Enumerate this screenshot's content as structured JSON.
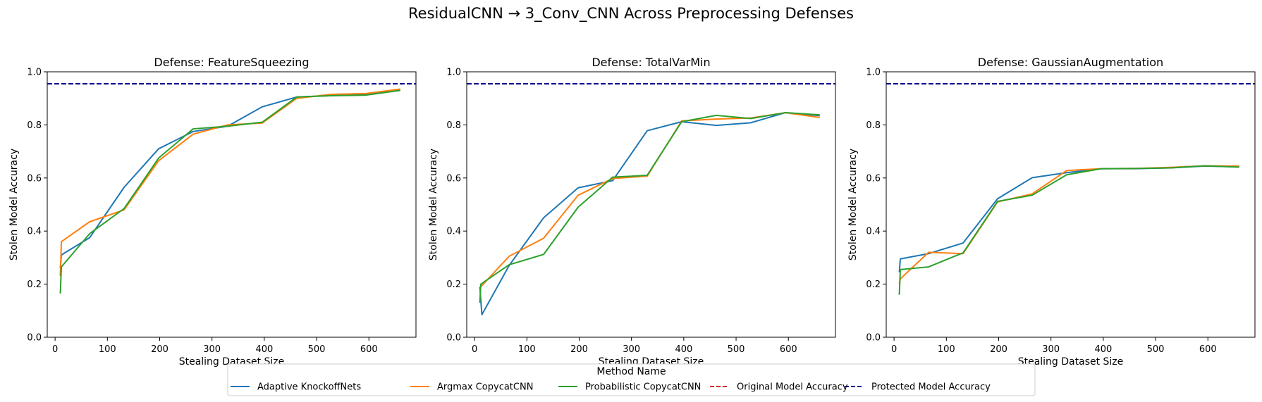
{
  "figure": {
    "suptitle": "ResidualCNN → 3_Conv_CNN Across Preprocessing Defenses"
  },
  "colors": {
    "Adaptive KnockoffNets": "#1f77b4",
    "Argmax CopycatCNN": "#ff7f0e",
    "Probabilistic CopycatCNN": "#2ca02c",
    "Original Model Accuracy": "#d62728",
    "Protected Model Accuracy": "#00008b"
  },
  "legend": {
    "title": "Method Name",
    "placement": "bottom-center",
    "entries": [
      {
        "label": "Adaptive KnockoffNets",
        "style": "solid"
      },
      {
        "label": "Argmax CopycatCNN",
        "style": "solid"
      },
      {
        "label": "Probabilistic CopycatCNN",
        "style": "solid"
      },
      {
        "label": "Original Model Accuracy",
        "style": "dashed"
      },
      {
        "label": "Protected Model Accuracy",
        "style": "dashed"
      }
    ]
  },
  "chart_data": [
    {
      "type": "line",
      "title": "Defense: FeatureSqueezing",
      "xlabel": "Stealing Dataset Size",
      "ylabel": "Stolen Model Accuracy",
      "xlim": [
        -15,
        690
      ],
      "ylim": [
        0.0,
        1.0
      ],
      "xticks": [
        0,
        100,
        200,
        300,
        400,
        500,
        600
      ],
      "yticks": [
        0.0,
        0.2,
        0.4,
        0.6,
        0.8,
        1.0
      ],
      "xtick_labels": [
        "0",
        "100",
        "200",
        "300",
        "400",
        "500",
        "600"
      ],
      "ytick_labels": [
        "0.0",
        "0.2",
        "0.4",
        "0.6",
        "0.8",
        "1.0"
      ],
      "hlines": [
        {
          "name": "Protected Model Accuracy",
          "y": 0.955
        }
      ],
      "series": [
        {
          "name": "Adaptive KnockoffNets",
          "x": [
            10,
            12,
            66,
            132,
            198,
            264,
            330,
            396,
            462,
            528,
            594,
            660
          ],
          "y": [
            0.26,
            0.31,
            0.375,
            0.565,
            0.71,
            0.775,
            0.795,
            0.868,
            0.905,
            0.91,
            0.915,
            0.93
          ]
        },
        {
          "name": "Argmax CopycatCNN",
          "x": [
            10,
            12,
            66,
            132,
            198,
            264,
            330,
            396,
            462,
            528,
            594,
            660
          ],
          "y": [
            0.23,
            0.36,
            0.435,
            0.48,
            0.665,
            0.765,
            0.8,
            0.807,
            0.9,
            0.915,
            0.918,
            0.935
          ]
        },
        {
          "name": "Probabilistic CopycatCNN",
          "x": [
            10,
            12,
            66,
            132,
            198,
            264,
            330,
            396,
            462,
            528,
            594,
            660
          ],
          "y": [
            0.165,
            0.265,
            0.39,
            0.485,
            0.675,
            0.785,
            0.795,
            0.81,
            0.905,
            0.91,
            0.912,
            0.93
          ]
        }
      ]
    },
    {
      "type": "line",
      "title": "Defense: TotalVarMin",
      "xlabel": "Stealing Dataset Size",
      "ylabel": "Stolen Model Accuracy",
      "xlim": [
        -15,
        690
      ],
      "ylim": [
        0.0,
        1.0
      ],
      "xticks": [
        0,
        100,
        200,
        300,
        400,
        500,
        600
      ],
      "yticks": [
        0.0,
        0.2,
        0.4,
        0.6,
        0.8,
        1.0
      ],
      "xtick_labels": [
        "0",
        "100",
        "200",
        "300",
        "400",
        "500",
        "600"
      ],
      "ytick_labels": [
        "0.0",
        "0.2",
        "0.4",
        "0.6",
        "0.8",
        "1.0"
      ],
      "hlines": [
        {
          "name": "Protected Model Accuracy",
          "y": 0.955
        }
      ],
      "series": [
        {
          "name": "Adaptive KnockoffNets",
          "x": [
            10,
            14,
            66,
            132,
            198,
            264,
            330,
            396,
            462,
            528,
            594,
            660
          ],
          "y": [
            0.19,
            0.085,
            0.27,
            0.45,
            0.563,
            0.59,
            0.778,
            0.812,
            0.798,
            0.808,
            0.846,
            0.835
          ]
        },
        {
          "name": "Argmax CopycatCNN",
          "x": [
            10,
            12,
            66,
            132,
            198,
            264,
            330,
            396,
            462,
            528,
            594,
            660
          ],
          "y": [
            0.17,
            0.19,
            0.305,
            0.373,
            0.535,
            0.598,
            0.607,
            0.815,
            0.822,
            0.826,
            0.846,
            0.828
          ]
        },
        {
          "name": "Probabilistic CopycatCNN",
          "x": [
            10,
            12,
            66,
            132,
            198,
            264,
            330,
            396,
            462,
            528,
            594,
            660
          ],
          "y": [
            0.13,
            0.2,
            0.273,
            0.312,
            0.49,
            0.603,
            0.61,
            0.812,
            0.836,
            0.824,
            0.846,
            0.838
          ]
        }
      ]
    },
    {
      "type": "line",
      "title": "Defense: GaussianAugmentation",
      "xlabel": "Stealing Dataset Size",
      "ylabel": "Stolen Model Accuracy",
      "xlim": [
        -15,
        690
      ],
      "ylim": [
        0.0,
        1.0
      ],
      "xticks": [
        0,
        100,
        200,
        300,
        400,
        500,
        600
      ],
      "yticks": [
        0.0,
        0.2,
        0.4,
        0.6,
        0.8,
        1.0
      ],
      "xtick_labels": [
        "0",
        "100",
        "200",
        "300",
        "400",
        "500",
        "600"
      ],
      "ytick_labels": [
        "0.0",
        "0.2",
        "0.4",
        "0.6",
        "0.8",
        "1.0"
      ],
      "hlines": [
        {
          "name": "Protected Model Accuracy",
          "y": 0.955
        }
      ],
      "series": [
        {
          "name": "Adaptive KnockoffNets",
          "x": [
            10,
            12,
            66,
            132,
            198,
            264,
            330,
            396,
            462,
            528,
            594,
            660
          ],
          "y": [
            0.245,
            0.295,
            0.315,
            0.355,
            0.522,
            0.601,
            0.62,
            0.635,
            0.635,
            0.638,
            0.645,
            0.642
          ]
        },
        {
          "name": "Argmax CopycatCNN",
          "x": [
            10,
            12,
            66,
            132,
            198,
            264,
            330,
            396,
            462,
            528,
            594,
            660
          ],
          "y": [
            0.2,
            0.22,
            0.32,
            0.315,
            0.51,
            0.54,
            0.628,
            0.635,
            0.636,
            0.64,
            0.646,
            0.645
          ]
        },
        {
          "name": "Probabilistic CopycatCNN",
          "x": [
            10,
            12,
            66,
            132,
            198,
            264,
            330,
            396,
            462,
            528,
            594,
            660
          ],
          "y": [
            0.16,
            0.255,
            0.265,
            0.318,
            0.512,
            0.535,
            0.612,
            0.635,
            0.636,
            0.638,
            0.646,
            0.641
          ]
        }
      ]
    }
  ]
}
